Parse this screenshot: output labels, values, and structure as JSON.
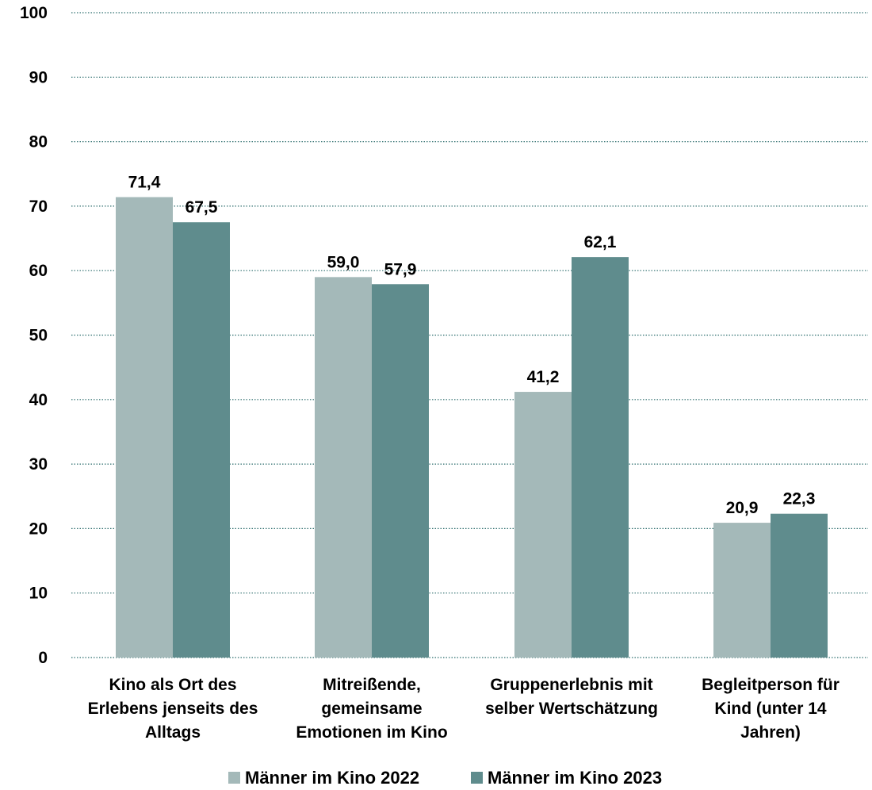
{
  "chart_data": {
    "type": "bar",
    "title": "",
    "xlabel": "",
    "ylabel": "",
    "ylim": [
      0,
      100
    ],
    "yticks": [
      0,
      10,
      20,
      30,
      40,
      50,
      60,
      70,
      80,
      90,
      100
    ],
    "grid": true,
    "legend_position": "bottom",
    "categories": [
      [
        "Kino als Ort des",
        "Erlebens jenseits des",
        "Alltags"
      ],
      [
        "Mitreißende,",
        "gemeinsame",
        "Emotionen im Kino"
      ],
      [
        "Gruppenerlebnis mit",
        "selber Wertschätzung"
      ],
      [
        "Begleitperson für",
        "Kind (unter 14",
        "Jahren)"
      ]
    ],
    "series": [
      {
        "name": "Männer im Kino 2022",
        "color": "#a4b9b9",
        "values": [
          71.4,
          59.0,
          41.2,
          20.9
        ],
        "labels": [
          "71,4",
          "59,0",
          "41,2",
          "20,9"
        ]
      },
      {
        "name": "Männer im Kino 2023",
        "color": "#5f8c8d",
        "values": [
          67.5,
          57.9,
          62.1,
          22.3
        ],
        "labels": [
          "67,5",
          "57,9",
          "62,1",
          "22,3"
        ]
      }
    ]
  }
}
